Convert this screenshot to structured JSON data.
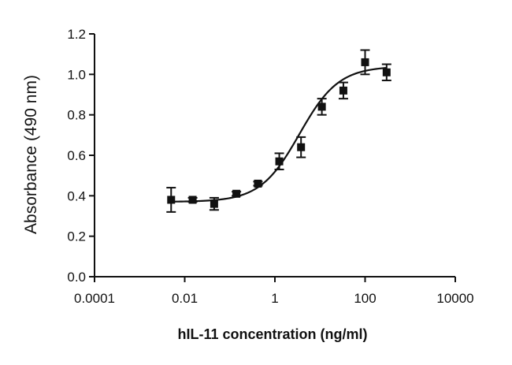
{
  "chart_data": {
    "type": "scatter",
    "xlabel": "hIL-11 concentration (ng/ml)",
    "ylabel": "Absorbance (490 nm)",
    "x_scale": "log10",
    "xlim": [
      0.0001,
      10000
    ],
    "ylim": [
      0.0,
      1.2
    ],
    "x_tick_values": [
      0.0001,
      0.01,
      1,
      100,
      10000
    ],
    "x_tick_labels": [
      "0.0001",
      "0.01",
      "1",
      "100",
      "10000"
    ],
    "y_tick_values": [
      0.0,
      0.2,
      0.4,
      0.6,
      0.8,
      1.0,
      1.2
    ],
    "y_tick_labels": [
      "0.0",
      "0.2",
      "0.4",
      "0.6",
      "0.8",
      "1.0",
      "1.2"
    ],
    "grid": false,
    "legend": "none",
    "series": [
      {
        "x": [
          0.005,
          0.015,
          0.045,
          0.14,
          0.42,
          1.25,
          3.8,
          11,
          33,
          100,
          300
        ],
        "y": [
          0.38,
          0.38,
          0.36,
          0.41,
          0.46,
          0.57,
          0.64,
          0.84,
          0.92,
          1.06,
          1.01
        ],
        "error": [
          0.06,
          0.01,
          0.03,
          0.01,
          0.01,
          0.04,
          0.05,
          0.04,
          0.04,
          0.06,
          0.04
        ]
      }
    ],
    "fit_curve": {
      "model": "4PL",
      "bottom": 0.37,
      "top": 1.04,
      "ec50": 3.5,
      "hill": 1.0
    },
    "colors": {
      "marker": "#111111",
      "line": "#111111",
      "axis": "#111111"
    }
  }
}
